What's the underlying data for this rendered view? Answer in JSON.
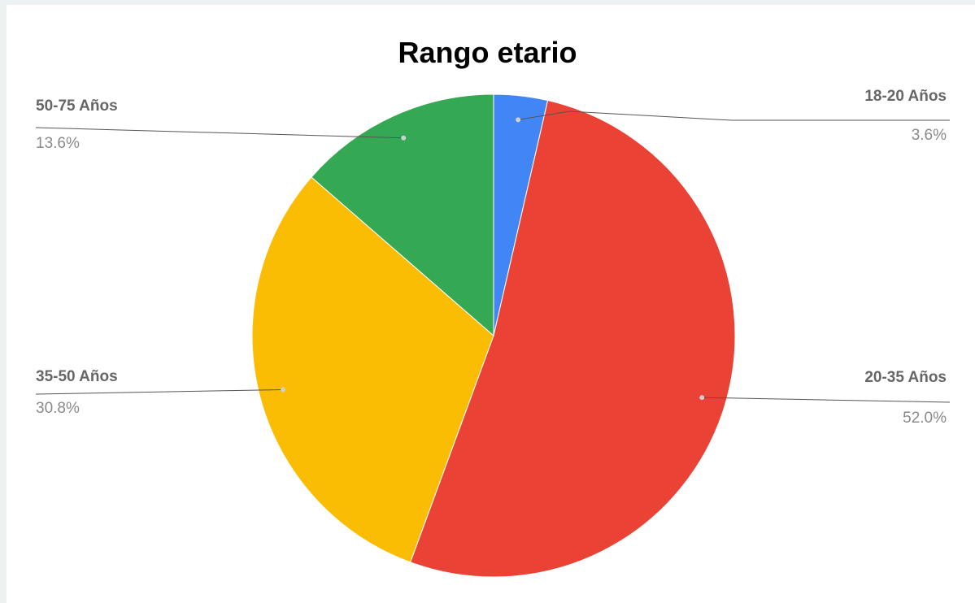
{
  "chart_data": {
    "type": "pie",
    "title": "Rango etario",
    "slices": [
      {
        "label": "18-20 Años",
        "value": 3.6,
        "display": "3.6%",
        "color": "#4285F4"
      },
      {
        "label": "20-35 Años",
        "value": 52.0,
        "display": "52.0%",
        "color": "#EA4335"
      },
      {
        "label": "35-50 Años",
        "value": 30.8,
        "display": "30.8%",
        "color": "#FBBC04"
      },
      {
        "label": "50-75 Años",
        "value": 13.6,
        "display": "13.6%",
        "color": "#34A853"
      }
    ],
    "legend": "none",
    "label_style": "leader-lines"
  }
}
